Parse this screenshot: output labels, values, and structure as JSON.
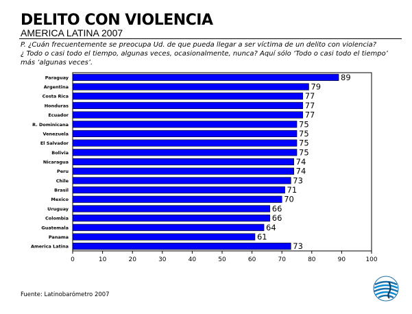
{
  "header": {
    "title": "DELITO CON VIOLENCIA",
    "subtitle": "AMERICA LATINA 2007",
    "question_lines": [
      "P. ¿Cuán frecuentemente se preocupa Ud. de que pueda llegar a ser víctima de un delito con violencia?",
      "¿ Todo o casi todo el tiempo, algunas veces, ocasionalmente, nunca? Aquí sólo ‘Todo o casi todo el tiempo’",
      "más ‘algunas veces’."
    ]
  },
  "footer": {
    "source": "Fuente: Latinobarómetro 2007"
  },
  "logo": {
    "icon": "latinobarometro-globe-logo"
  },
  "colors": {
    "bar": "#0000ff",
    "bar_outline": "#000000"
  },
  "chart_data": {
    "type": "bar",
    "orientation": "horizontal",
    "categories": [
      "Paraguay",
      "Argentina",
      "Costa Rica",
      "Honduras",
      "Ecuador",
      "R. Dominicana",
      "Venezuela",
      "El Salvador",
      "Bolivia",
      "Nicaragua",
      "Peru",
      "Chile",
      "Brasil",
      "Mexico",
      "Uruguay",
      "Colombia",
      "Guatemala",
      "Panama",
      "America Latina"
    ],
    "values": [
      89,
      79,
      77,
      77,
      77,
      75,
      75,
      75,
      75,
      74,
      74,
      73,
      71,
      70,
      66,
      66,
      64,
      61,
      73
    ],
    "xlim": [
      0,
      100
    ],
    "xticks": [
      0,
      10,
      20,
      30,
      40,
      50,
      60,
      70,
      80,
      90,
      100
    ],
    "data_labels": true,
    "grid": false,
    "legend": "none"
  }
}
